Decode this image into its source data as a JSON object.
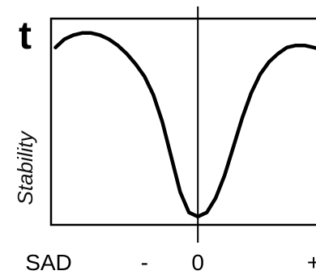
{
  "chart_data": {
    "type": "line",
    "panel_label": "t",
    "ylabel": "Stability",
    "xlabel": "SAD",
    "x_tick_labels": [
      "-",
      "0",
      "+"
    ],
    "x_tick_values": [
      -0.6,
      0,
      1.3
    ],
    "xlim": [
      -1.65,
      1.4
    ],
    "ylim": [
      0,
      1
    ],
    "grid": false,
    "legend": "none",
    "series": [
      {
        "x": [
          -1.6,
          -1.5,
          -1.4,
          -1.3,
          -1.2,
          -1.1,
          -1.0,
          -0.9,
          -0.8,
          -0.7,
          -0.6,
          -0.5,
          -0.4,
          -0.3,
          -0.2,
          -0.1,
          0.0,
          0.1,
          0.2,
          0.3,
          0.4,
          0.5,
          0.6,
          0.7,
          0.8,
          0.9,
          1.0,
          1.1,
          1.2,
          1.3,
          1.4
        ],
        "values": [
          0.86,
          0.9,
          0.92,
          0.93,
          0.93,
          0.92,
          0.9,
          0.87,
          0.83,
          0.78,
          0.72,
          0.63,
          0.5,
          0.33,
          0.16,
          0.06,
          0.04,
          0.06,
          0.13,
          0.24,
          0.38,
          0.52,
          0.64,
          0.73,
          0.79,
          0.83,
          0.86,
          0.87,
          0.87,
          0.86,
          0.85
        ]
      }
    ],
    "colors": {
      "line": "#000000",
      "frame": "#000000",
      "background": "#ffffff"
    }
  }
}
